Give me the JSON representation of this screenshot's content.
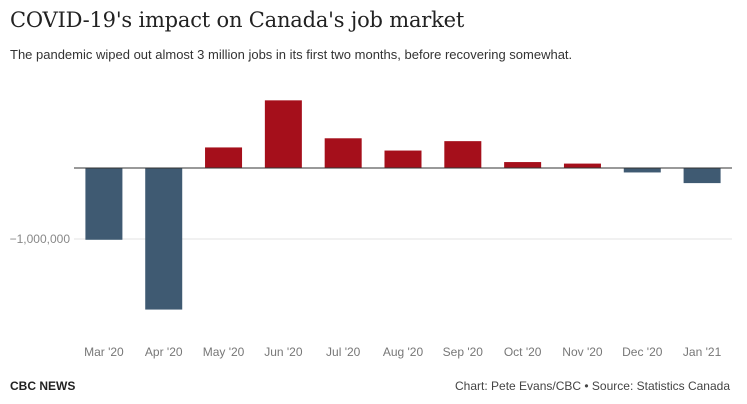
{
  "header": {
    "title": "COVID-19's impact on Canada's job market",
    "subtitle": "The pandemic wiped out almost 3 million jobs in its first two months, before recovering somewhat."
  },
  "footer": {
    "brand": "CBC NEWS",
    "credit": "Chart: Pete Evans/CBC • Source: Statistics Canada"
  },
  "colors": {
    "positive": "#a50f1b",
    "negative": "#3f5a72"
  },
  "chart_data": {
    "type": "bar",
    "categories": [
      "Mar '20",
      "Apr '20",
      "May '20",
      "Jun '20",
      "Jul '20",
      "Aug '20",
      "Sep '20",
      "Oct '20",
      "Nov '20",
      "Dec '20",
      "Jan '21"
    ],
    "values": [
      -1011000,
      -1993800,
      289600,
      952900,
      418500,
      245800,
      378200,
      83600,
      62100,
      -62700,
      -212800
    ],
    "ylim": [
      -2100000,
      1000000
    ],
    "yticks": [
      -1000000
    ],
    "ytick_labels": [
      "−1,000,000"
    ],
    "xlabel": "",
    "ylabel": "",
    "grid": true,
    "legend": "none"
  }
}
